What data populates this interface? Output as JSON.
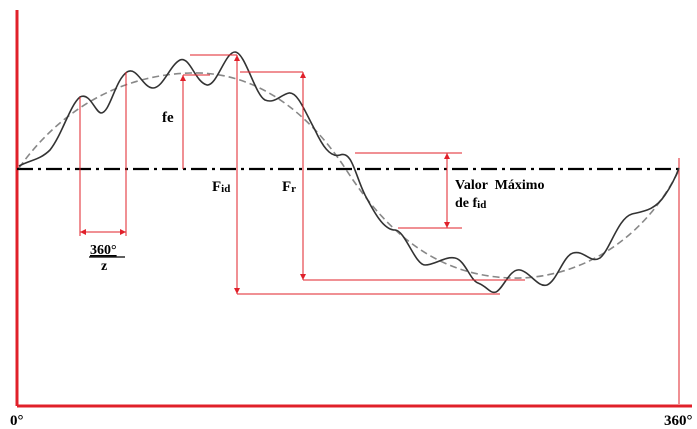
{
  "axis": {
    "start_label": "0°",
    "end_label": "360°"
  },
  "labels": {
    "fe": "fe",
    "fid_main": "F",
    "fid_sub": "id",
    "fr_main": "F",
    "fr_sub": "r",
    "pitch_top": "360°",
    "pitch_bottom": "z",
    "valor_line1": "Valor  Máximo",
    "valor_line2_main": "de f",
    "valor_line2_sub": "id"
  },
  "colors": {
    "axis": "#e0202a",
    "dimension": "#e0202a",
    "curve": "#333333",
    "sine": "#888888",
    "centerline": "#000000"
  }
}
